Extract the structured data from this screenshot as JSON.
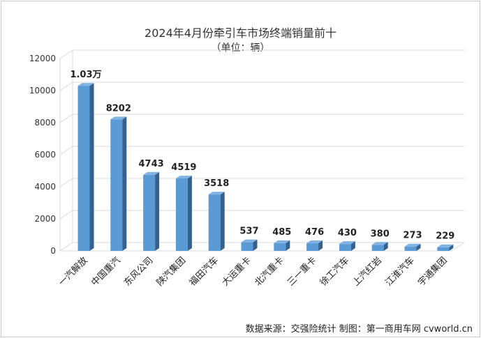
{
  "chart_data": {
    "type": "bar",
    "title": "2024年4月份牵引车市场终端销量前十",
    "subtitle": "（单位：辆）",
    "categories": [
      "一汽解放",
      "中国重汽",
      "东风公司",
      "陕汽集团",
      "福田汽车",
      "大运重卡",
      "北汽重卡",
      "三一重卡",
      "徐工汽车",
      "上汽红岩",
      "江淮汽车",
      "宇通集团"
    ],
    "values": [
      10300,
      8202,
      4743,
      4519,
      3518,
      537,
      485,
      476,
      430,
      380,
      273,
      229
    ],
    "data_labels": [
      "1.03万",
      "8202",
      "4743",
      "4519",
      "3518",
      "537",
      "485",
      "476",
      "430",
      "380",
      "273",
      "229"
    ],
    "y_ticks": [
      "0",
      "2000",
      "4000",
      "6000",
      "8000",
      "10000",
      "12000"
    ],
    "ylim": [
      0,
      12000
    ],
    "grid": true,
    "bar_color": "#5b9bd5",
    "source": "数据来源：交强险统计  制图：第一商用车网 cvworld.cn"
  }
}
